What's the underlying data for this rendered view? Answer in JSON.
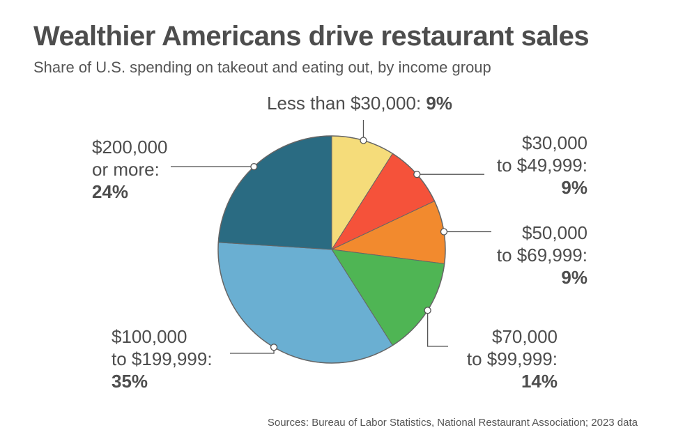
{
  "header": {
    "title": "Wealthier Americans drive restaurant sales",
    "subtitle": "Share of U.S. spending on takeout and eating out, by income group"
  },
  "chart_data": {
    "type": "pie",
    "title": "Wealthier Americans drive restaurant sales",
    "subtitle": "Share of U.S. spending on takeout and eating out, by income group",
    "slices": [
      {
        "label_lines": [
          "Less than $30,000: "
        ],
        "value": 9,
        "value_label": "9%",
        "color": "#f5dc7a"
      },
      {
        "label_lines": [
          "$30,000",
          "to $49,999:"
        ],
        "value": 9,
        "value_label": "9%",
        "color": "#f5523a"
      },
      {
        "label_lines": [
          "$50,000",
          "to $69,999:"
        ],
        "value": 9,
        "value_label": "9%",
        "color": "#f28a2e"
      },
      {
        "label_lines": [
          "$70,000",
          "to $99,999:"
        ],
        "value": 14,
        "value_label": "14%",
        "color": "#4fb554"
      },
      {
        "label_lines": [
          "$100,000",
          "to $199,999:"
        ],
        "value": 35,
        "value_label": "35%",
        "color": "#6aafd2"
      },
      {
        "label_lines": [
          "$200,000",
          "or more:"
        ],
        "value": 24,
        "value_label": "24%",
        "color": "#2a6b82"
      }
    ],
    "start_angle_deg": 0,
    "direction": "clockwise"
  },
  "footer": {
    "source": "Sources: Bureau of Labor Statistics, National Restaurant Association; 2023 data"
  }
}
